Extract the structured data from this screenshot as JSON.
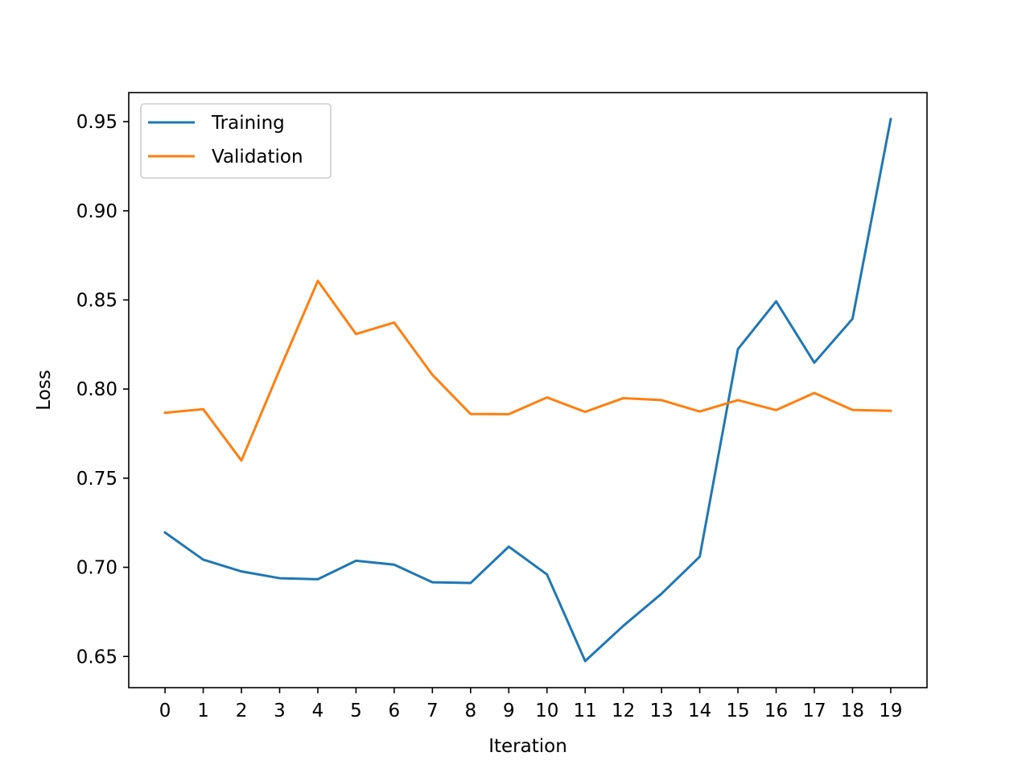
{
  "chart_data": {
    "type": "line",
    "xlabel": "Iteration",
    "ylabel": "Loss",
    "x": [
      0,
      1,
      2,
      3,
      4,
      5,
      6,
      7,
      8,
      9,
      10,
      11,
      12,
      13,
      14,
      15,
      16,
      17,
      18,
      19
    ],
    "xlim": [
      -0.95,
      19.95
    ],
    "ylim": [
      0.6325,
      0.9663
    ],
    "yticks": [
      0.65,
      0.7,
      0.75,
      0.8,
      0.85,
      0.9,
      0.95
    ],
    "ytick_labels": [
      "0.65",
      "0.70",
      "0.75",
      "0.80",
      "0.85",
      "0.90",
      "0.95"
    ],
    "xtick_labels": [
      "0",
      "1",
      "2",
      "3",
      "4",
      "5",
      "6",
      "7",
      "8",
      "9",
      "10",
      "11",
      "12",
      "13",
      "14",
      "15",
      "16",
      "17",
      "18",
      "19"
    ],
    "grid": false,
    "legend_position": "top-left",
    "series": [
      {
        "name": "Training",
        "color": "#1f77b4",
        "values": [
          0.7195,
          0.7043,
          0.6977,
          0.6939,
          0.6933,
          0.7037,
          0.7015,
          0.6916,
          0.6912,
          0.7116,
          0.696,
          0.6474,
          0.6672,
          0.6852,
          0.706,
          0.8224,
          0.8492,
          0.8148,
          0.8394,
          0.9514
        ]
      },
      {
        "name": "Validation",
        "color": "#ff7f0e",
        "values": [
          0.7867,
          0.7887,
          0.7599,
          0.8108,
          0.8607,
          0.8309,
          0.8373,
          0.808,
          0.786,
          0.7859,
          0.7953,
          0.7872,
          0.7949,
          0.7938,
          0.7874,
          0.7938,
          0.7882,
          0.7978,
          0.7883,
          0.7878
        ]
      }
    ]
  }
}
